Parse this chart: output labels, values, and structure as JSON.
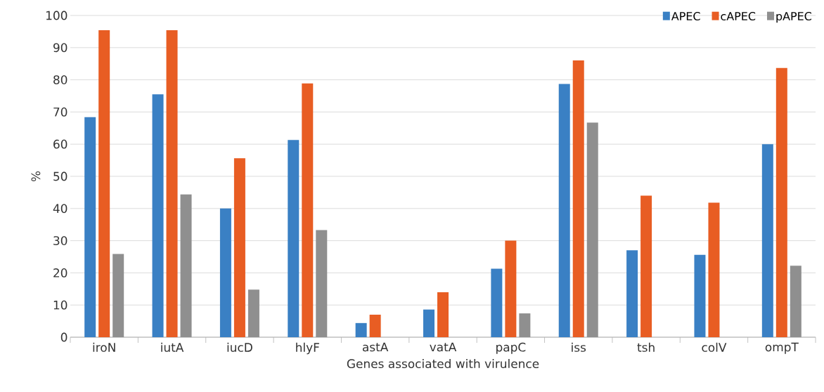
{
  "chart_data": {
    "type": "bar",
    "xlabel": "Genes associated with virulence",
    "ylabel": "%",
    "categories": [
      "iroN",
      "iutA",
      "iucD",
      "hlyF",
      "astA",
      "vatA",
      "papC",
      "iss",
      "tsh",
      "colV",
      "ompT"
    ],
    "series": [
      {
        "name": "APEC",
        "color": "#3a80c4",
        "values": [
          68.4,
          75.5,
          40.0,
          61.3,
          4.4,
          8.6,
          21.3,
          78.7,
          27.0,
          25.6,
          60.0
        ]
      },
      {
        "name": "cAPEC",
        "color": "#e85d23",
        "values": [
          95.4,
          95.4,
          55.6,
          78.9,
          7.0,
          14.0,
          30.0,
          86.0,
          44.0,
          41.8,
          83.7
        ]
      },
      {
        "name": "pAPEC",
        "color": "#8f8f8f",
        "values": [
          25.9,
          44.4,
          14.8,
          33.3,
          0,
          0,
          7.4,
          66.7,
          0,
          0,
          22.2
        ]
      }
    ],
    "ylim": [
      0,
      100
    ],
    "yticks": [
      0,
      10,
      20,
      30,
      40,
      50,
      60,
      70,
      80,
      90,
      100
    ],
    "grid": "y",
    "legend": "top right"
  }
}
